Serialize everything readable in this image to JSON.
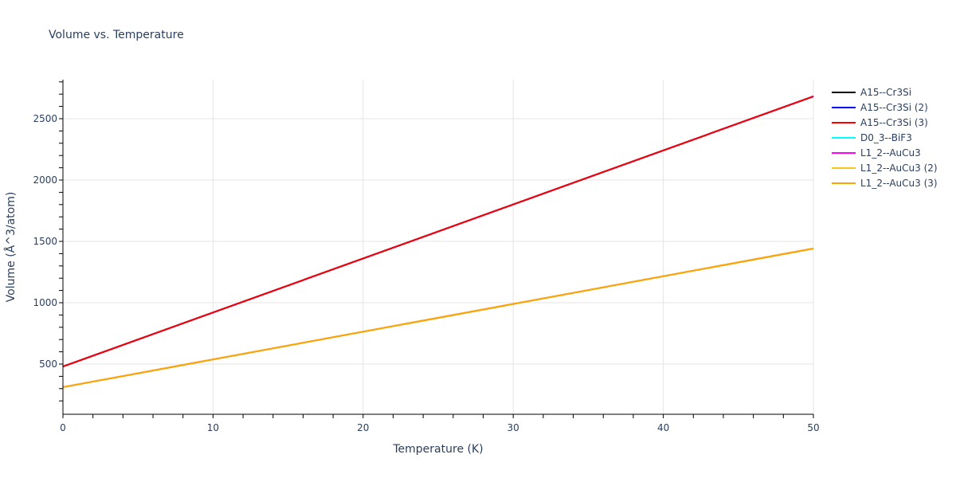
{
  "chart_data": {
    "type": "line",
    "title": "Volume vs. Temperature",
    "xlabel": "Temperature (K)",
    "ylabel": "Volume (Å^3/atom)",
    "xlim": [
      0,
      50
    ],
    "ylim": [
      100,
      2820
    ],
    "x_ticks": [
      "0",
      "10",
      "20",
      "30",
      "40",
      "50"
    ],
    "y_ticks": [
      "500",
      "1000",
      "1500",
      "2000",
      "2500"
    ],
    "grid": true,
    "legend_position": "right",
    "series": [
      {
        "name": "A15--Cr3Si",
        "color": "#000000",
        "x": [
          0,
          50
        ],
        "values": [
          480,
          2682
        ]
      },
      {
        "name": "A15--Cr3Si (2)",
        "color": "#0000ff",
        "x": [
          0,
          50
        ],
        "values": [
          480,
          2682
        ]
      },
      {
        "name": "A15--Cr3Si (3)",
        "color": "#ff0000",
        "x": [
          0,
          50
        ],
        "values": [
          480,
          2682
        ]
      },
      {
        "name": "D0_3--BiF3",
        "color": "#00ffff",
        "x": [
          0,
          50
        ],
        "values": [
          312,
          1442
        ]
      },
      {
        "name": "L1_2--AuCu3",
        "color": "#ff00ff",
        "x": [
          0,
          50
        ],
        "values": [
          312,
          1442
        ]
      },
      {
        "name": "L1_2--AuCu3 (2)",
        "color": "#f5c518",
        "x": [
          0,
          50
        ],
        "values": [
          312,
          1442
        ]
      },
      {
        "name": "L1_2--AuCu3 (3)",
        "color": "#ffa500",
        "x": [
          0,
          50
        ],
        "values": [
          312,
          1442
        ]
      }
    ]
  }
}
